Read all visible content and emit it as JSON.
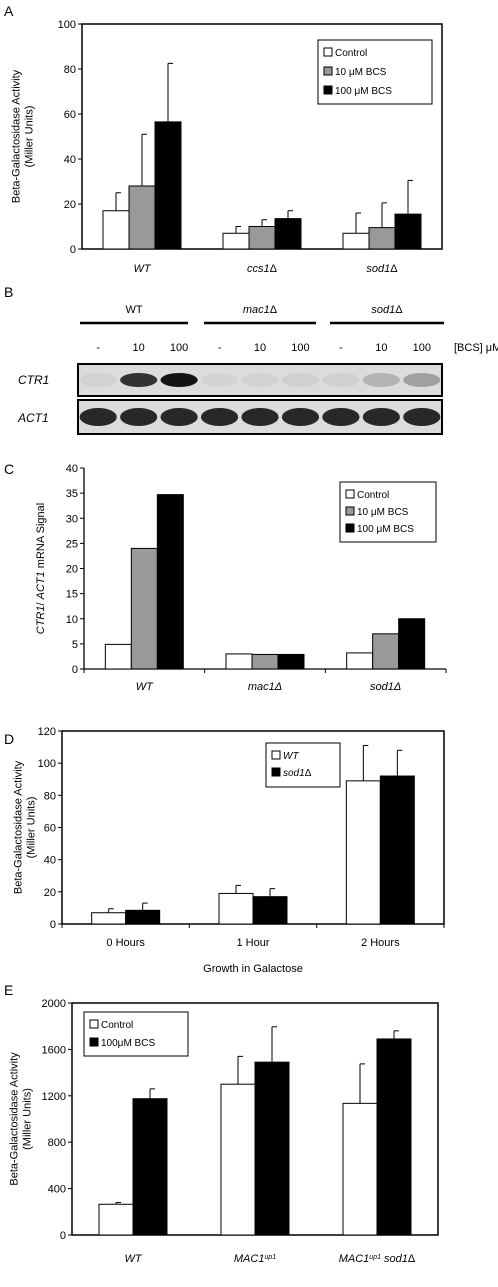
{
  "panels": {
    "a": "A",
    "b": "B",
    "c": "C",
    "d": "D",
    "e": "E"
  },
  "colors": {
    "control": "#ffffff",
    "mid": "#999999",
    "high": "#000000",
    "axis": "#000000"
  },
  "blot": {
    "groups": [
      "WT",
      "mac1Δ",
      "sod1Δ"
    ],
    "conc": [
      "-",
      "10",
      "100",
      "-",
      "10",
      "100",
      "-",
      "10",
      "100"
    ],
    "conc_unit": "[BCS] μM",
    "rows": [
      "CTR1",
      "ACT1"
    ],
    "ctr1_intensity": [
      0.05,
      0.85,
      1.0,
      0.04,
      0.05,
      0.06,
      0.06,
      0.2,
      0.3
    ],
    "act1_intensity": [
      0.9,
      0.9,
      0.9,
      0.9,
      0.9,
      0.9,
      0.9,
      0.9,
      0.9
    ]
  },
  "chart_data": [
    {
      "type": "bar",
      "panel": "A",
      "categories": [
        "WT",
        "ccs1Δ",
        "sod1Δ"
      ],
      "series": [
        {
          "name": "Control",
          "values": [
            17,
            7,
            7
          ],
          "errors": [
            8,
            3,
            9
          ]
        },
        {
          "name": "10 μM BCS",
          "values": [
            28,
            10,
            9.5
          ],
          "errors": [
            23,
            3,
            11
          ]
        },
        {
          "name": "100 μM BCS",
          "values": [
            56.5,
            13.5,
            15.5
          ],
          "errors": [
            26,
            3.5,
            15
          ]
        }
      ],
      "ylabel": "Beta-Galactosidase Activity\n(Miller Units)",
      "xlabel": "",
      "ylim": [
        0,
        100
      ],
      "yticks": [
        0,
        20,
        40,
        60,
        80,
        100
      ],
      "legend": "top-right",
      "grid": false
    },
    {
      "type": "bar",
      "panel": "C",
      "categories": [
        "WT",
        "mac1Δ",
        "sod1Δ"
      ],
      "series": [
        {
          "name": "Control",
          "values": [
            4.9,
            3,
            3.2
          ]
        },
        {
          "name": "10 μM BCS",
          "values": [
            24,
            2.9,
            7
          ]
        },
        {
          "name": "100 μM BCS",
          "values": [
            34.7,
            2.9,
            10
          ]
        }
      ],
      "ylabel": "CTR1/ ACT1 mRNA Signal",
      "xlabel": "",
      "ylim": [
        0,
        40
      ],
      "yticks": [
        0,
        5,
        10,
        15,
        20,
        25,
        30,
        35,
        40
      ],
      "legend": "top-right",
      "grid": false
    },
    {
      "type": "bar",
      "panel": "D",
      "categories": [
        "0 Hours",
        "1 Hour",
        "2 Hours"
      ],
      "series": [
        {
          "name": "WT",
          "values": [
            7,
            19,
            89
          ],
          "errors": [
            2.5,
            5,
            22
          ]
        },
        {
          "name": "sod1Δ",
          "values": [
            8.5,
            17,
            92
          ],
          "errors": [
            4.5,
            5,
            16
          ]
        }
      ],
      "ylabel": "Beta-Galactosidase Activity\n(Miller Units)",
      "xlabel": "Growth in Galactose",
      "ylim": [
        0,
        120
      ],
      "yticks": [
        0,
        20,
        40,
        60,
        80,
        100,
        120
      ],
      "legend": "top-right",
      "grid": false
    },
    {
      "type": "bar",
      "panel": "E",
      "categories": [
        "WT",
        "MAC1up1",
        "MAC1up1 sod1Δ"
      ],
      "series": [
        {
          "name": "Control",
          "values": [
            265,
            1300,
            1135
          ],
          "errors": [
            15,
            240,
            340
          ]
        },
        {
          "name": "100μM BCS",
          "values": [
            1175,
            1490,
            1690
          ],
          "errors": [
            85,
            305,
            70
          ]
        }
      ],
      "ylabel": "Beta-Galactosidase Activity\n(Miller Units)",
      "xlabel": "",
      "ylim": [
        0,
        2000
      ],
      "yticks": [
        0,
        400,
        800,
        1200,
        1600,
        2000
      ],
      "legend": "top-left",
      "grid": false
    }
  ]
}
